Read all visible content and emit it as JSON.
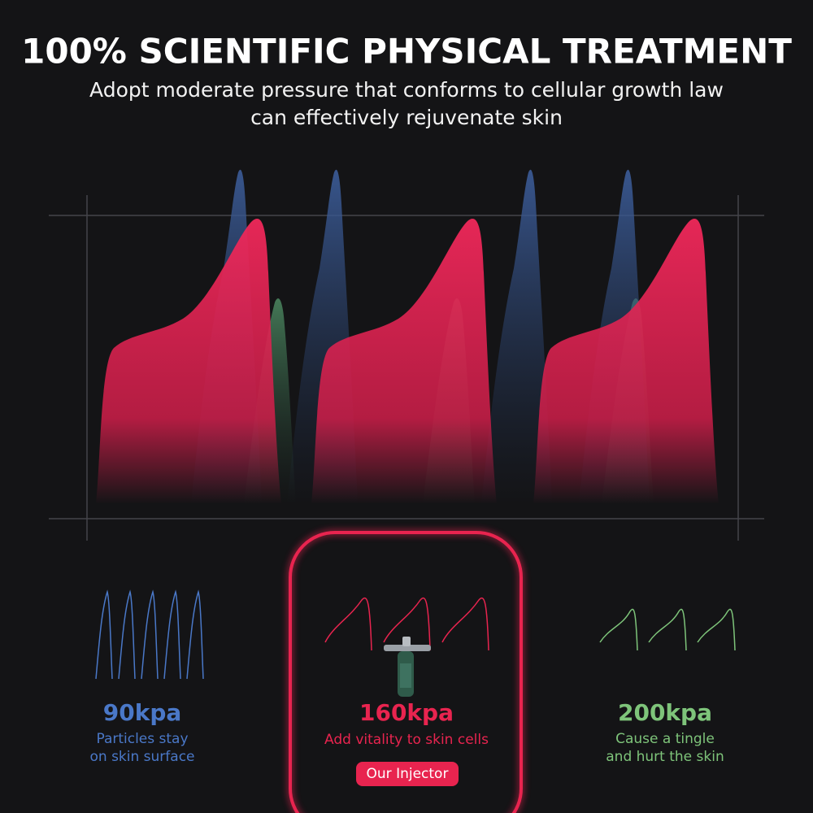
{
  "header": {
    "title": "100% SCIENTIFIC PHYSICAL TREATMENT",
    "subtitle": [
      "Adopt moderate pressure that conforms to cellular growth law",
      "can effectively rejuvenate skin"
    ]
  },
  "panels": [
    {
      "value": "90kpa",
      "description": [
        "Particles stay",
        "on skin surface"
      ]
    },
    {
      "value": "160kpa",
      "description": [
        "Add vitality to skin cells"
      ],
      "badge": "Our Injector"
    },
    {
      "value": "200kpa",
      "description": [
        "Cause a tingle",
        "and hurt the skin"
      ]
    }
  ]
}
